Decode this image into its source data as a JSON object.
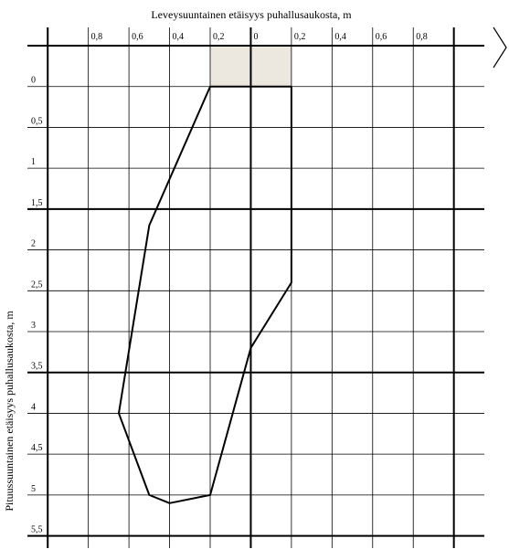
{
  "chart_data": {
    "type": "line",
    "title": "Leveysuuntainen etäisyys puhallusaukosta, m",
    "y_label": "Pituussuuntainen etäisyys puhallusaukosta, m",
    "xlim": [
      -1.1,
      1.15
    ],
    "ylim": [
      -0.5,
      5.65
    ],
    "y_inverted": true,
    "xticks": [
      {
        "value": -1,
        "label": null
      },
      {
        "value": -0.8,
        "label": "0,8"
      },
      {
        "value": -0.6,
        "label": "0,6"
      },
      {
        "value": -0.4,
        "label": "0,4"
      },
      {
        "value": -0.2,
        "label": "0,2"
      },
      0,
      {
        "value": 0.2,
        "label": "0,2"
      },
      {
        "value": 0.4,
        "label": "0,4"
      },
      {
        "value": 0.6,
        "label": "0,6"
      },
      {
        "value": 0.8,
        "label": "0,8"
      },
      {
        "value": 1,
        "label": null
      }
    ],
    "yticks": [
      {
        "value": -0.5,
        "label": null
      },
      0,
      {
        "value": 0.5,
        "label": "0,5"
      },
      1,
      {
        "value": 1.5,
        "label": "1,5"
      },
      2,
      {
        "value": 2.5,
        "label": "2,5"
      },
      3,
      {
        "value": 3.5,
        "label": "3,5"
      },
      4,
      {
        "value": 4.5,
        "label": "4,5"
      },
      5,
      {
        "value": 5.5,
        "label": "5,5"
      }
    ],
    "thick_xticks": [
      -1,
      0,
      1
    ],
    "thick_yticks": [
      -0.5,
      1.5,
      3.5,
      5.5
    ],
    "grid": true,
    "box": {
      "x": [
        -0.2,
        0.2
      ],
      "y": [
        -0.5,
        0
      ],
      "color": "#ece8df"
    },
    "series": [
      {
        "color": "#000000",
        "closed": true,
        "x": [
          -0.2,
          -0.5,
          -0.65,
          -0.5,
          -0.4,
          -0.2,
          0,
          0.2,
          0.2
        ],
        "values": [
          0,
          1.7,
          4,
          5,
          5.1,
          5,
          3.2,
          2.4,
          0
        ]
      }
    ]
  }
}
